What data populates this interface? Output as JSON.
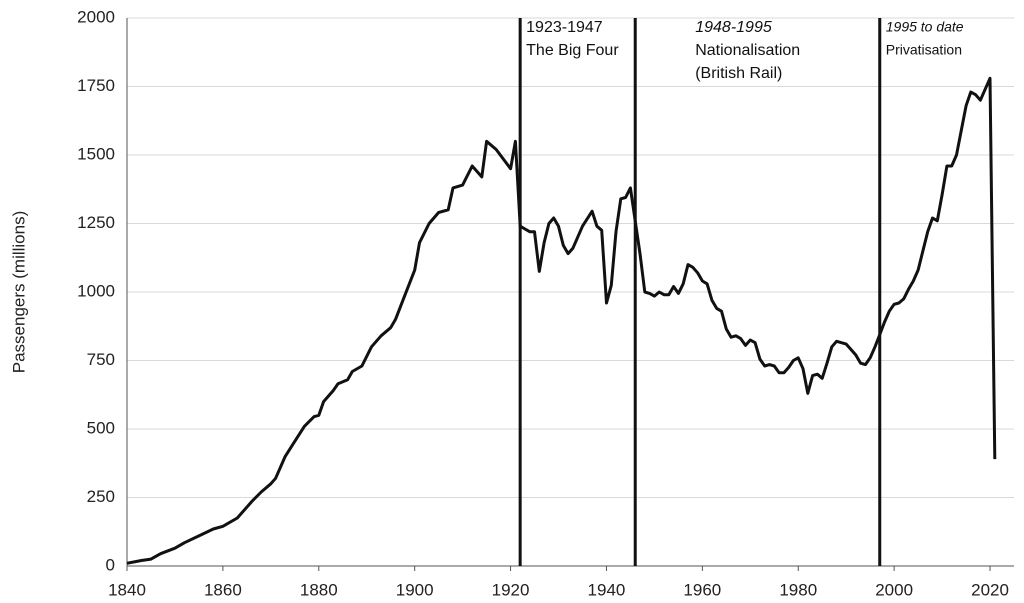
{
  "chart_data": {
    "type": "line",
    "y_label": "Passengers (millions)",
    "xlim": [
      1840,
      2025
    ],
    "ylim": [
      0,
      2000
    ],
    "xticks": [
      1840,
      1860,
      1880,
      1900,
      1920,
      1940,
      1960,
      1980,
      2000,
      2020
    ],
    "yticks": [
      0,
      250,
      500,
      750,
      1000,
      1250,
      1500,
      1750,
      2000
    ],
    "grid": true,
    "color": "#111111",
    "x": [
      1840,
      1843,
      1845,
      1847,
      1850,
      1852,
      1855,
      1858,
      1860,
      1863,
      1866,
      1868,
      1870,
      1871,
      1873,
      1875,
      1877,
      1879,
      1880,
      1881,
      1883,
      1884,
      1886,
      1887,
      1889,
      1891,
      1893,
      1895,
      1896,
      1898,
      1900,
      1901,
      1903,
      1905,
      1907,
      1908,
      1910,
      1912,
      1914,
      1915,
      1917,
      1920,
      1921,
      1922,
      1923,
      1924,
      1925,
      1926,
      1927,
      1928,
      1929,
      1930,
      1931,
      1932,
      1933,
      1934,
      1935,
      1937,
      1938,
      1939,
      1940,
      1941,
      1942,
      1943,
      1944,
      1945,
      1946,
      1947,
      1948,
      1949,
      1950,
      1951,
      1952,
      1953,
      1954,
      1955,
      1956,
      1957,
      1958,
      1959,
      1960,
      1961,
      1962,
      1963,
      1964,
      1965,
      1966,
      1967,
      1968,
      1969,
      1970,
      1971,
      1972,
      1973,
      1974,
      1975,
      1976,
      1977,
      1978,
      1979,
      1980,
      1981,
      1982,
      1983,
      1984,
      1985,
      1986,
      1987,
      1988,
      1989,
      1990,
      1991,
      1992,
      1993,
      1994,
      1995,
      1996,
      1997,
      1998,
      1999,
      2000,
      2001,
      2002,
      2003,
      2004,
      2005,
      2006,
      2007,
      2008,
      2009,
      2010,
      2011,
      2012,
      2013,
      2014,
      2015,
      2016,
      2017,
      2018,
      2019,
      2020,
      2021
    ],
    "values": [
      10,
      20,
      25,
      45,
      65,
      85,
      110,
      135,
      145,
      175,
      235,
      270,
      300,
      320,
      400,
      455,
      510,
      545,
      550,
      600,
      640,
      665,
      680,
      710,
      730,
      800,
      840,
      870,
      900,
      990,
      1080,
      1180,
      1250,
      1290,
      1300,
      1380,
      1390,
      1460,
      1420,
      1550,
      1520,
      1450,
      1550,
      1240,
      1230,
      1220,
      1220,
      1075,
      1180,
      1250,
      1270,
      1240,
      1170,
      1140,
      1160,
      1200,
      1240,
      1295,
      1240,
      1225,
      960,
      1025,
      1220,
      1340,
      1345,
      1380,
      1260,
      1140,
      1000,
      995,
      985,
      1000,
      990,
      990,
      1020,
      995,
      1030,
      1100,
      1090,
      1070,
      1040,
      1030,
      970,
      940,
      930,
      865,
      835,
      840,
      830,
      805,
      825,
      815,
      755,
      730,
      735,
      730,
      705,
      705,
      725,
      750,
      760,
      720,
      630,
      695,
      700,
      685,
      740,
      800,
      820,
      815,
      810,
      790,
      770,
      740,
      735,
      760,
      800,
      845,
      890,
      930,
      955,
      960,
      975,
      1010,
      1040,
      1080,
      1150,
      1220,
      1270,
      1260,
      1355,
      1460,
      1460,
      1500,
      1590,
      1680,
      1730,
      1720,
      1700,
      1740,
      1780,
      390
    ],
    "annotations": [
      {
        "x": 1922,
        "text": [
          "1923-1947",
          "The Big Four"
        ]
      },
      {
        "x": 1946,
        "text": [
          "1948-1995",
          "Nationalisation",
          "(British Rail)"
        ]
      },
      {
        "x": 1997,
        "text": [
          "1995 to date",
          "Privatisation"
        ]
      }
    ]
  }
}
